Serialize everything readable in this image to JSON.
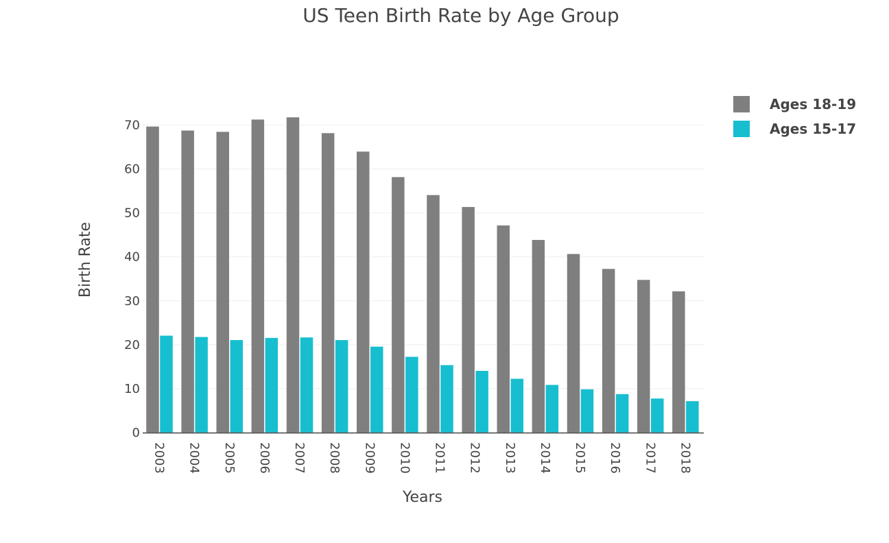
{
  "chart_data": {
    "type": "bar",
    "title": "US Teen Birth Rate by Age Group",
    "xlabel": "Years",
    "ylabel": "Birth Rate",
    "categories": [
      "2003",
      "2004",
      "2005",
      "2006",
      "2007",
      "2008",
      "2009",
      "2010",
      "2011",
      "2012",
      "2013",
      "2014",
      "2015",
      "2016",
      "2017",
      "2018"
    ],
    "series": [
      {
        "name": "Ages 18-19",
        "color": "#7f7f7f",
        "values": [
          69.7,
          68.8,
          68.5,
          71.3,
          71.8,
          68.2,
          64.0,
          58.2,
          54.1,
          51.4,
          47.2,
          43.9,
          40.7,
          37.3,
          34.8,
          32.2
        ]
      },
      {
        "name": "Ages 15-17",
        "color": "#17becf",
        "values": [
          22.1,
          21.8,
          21.1,
          21.6,
          21.7,
          21.1,
          19.6,
          17.3,
          15.4,
          14.1,
          12.3,
          10.9,
          9.9,
          8.8,
          7.8,
          7.2
        ]
      }
    ],
    "ylim": [
      0,
      73.5
    ],
    "yticks": [
      0,
      10,
      20,
      30,
      40,
      50,
      60,
      70
    ],
    "grid": true,
    "legend": "top-right"
  }
}
